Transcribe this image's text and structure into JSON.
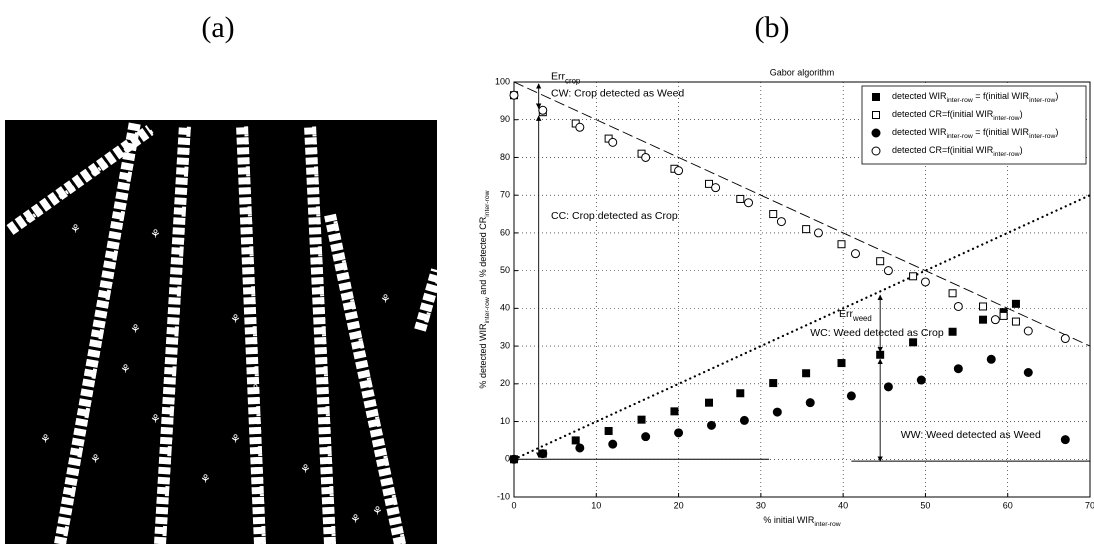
{
  "panels": [
    "(a)",
    "(b)"
  ],
  "chart_data": {
    "type": "scatter",
    "title": "Gabor algorithm",
    "xlabel": [
      "% initial WIR",
      "inter-row"
    ],
    "ylabel": [
      "% detected WIR",
      "inter-row",
      " and % detected CR",
      "inter-row"
    ],
    "xlim": [
      0,
      70
    ],
    "ylim": [
      -10,
      100
    ],
    "xticks": [
      0,
      10,
      20,
      30,
      40,
      50,
      60,
      70
    ],
    "yticks": [
      -10,
      0,
      10,
      20,
      30,
      40,
      50,
      60,
      70,
      80,
      90,
      100
    ],
    "grid": true,
    "legend": "upper right",
    "series": [
      {
        "name": [
          "detected WIR",
          "inter-row",
          " = f(initial WIR",
          "inter-row",
          ")"
        ],
        "marker": "square",
        "filled": true,
        "color": "#000000",
        "x": [
          0,
          3.5,
          7.5,
          11.5,
          15.5,
          19.5,
          23.7,
          27.5,
          31.5,
          35.5,
          39.8,
          44.5,
          48.5,
          53.3,
          57,
          59.5,
          61
        ],
        "values": [
          0,
          1.5,
          5,
          7.5,
          10.5,
          12.7,
          15,
          17.5,
          20.2,
          22.8,
          25.5,
          27.7,
          31,
          33.8,
          37,
          39,
          41.2
        ]
      },
      {
        "name": [
          "detected CR=f(initial WIR",
          "inter-row",
          ")"
        ],
        "marker": "square",
        "filled": false,
        "color": "#000000",
        "x": [
          0,
          3.5,
          7.5,
          11.5,
          15.5,
          19.5,
          23.7,
          27.5,
          31.5,
          35.5,
          39.8,
          44.5,
          48.5,
          53.3,
          57,
          59.5,
          61
        ],
        "values": [
          96.5,
          92,
          89,
          85,
          81,
          77,
          73,
          69,
          65,
          61,
          57,
          52.5,
          48.5,
          44,
          40.5,
          38,
          36.5
        ]
      },
      {
        "name": [
          "detected WIR",
          "inter-row",
          " = f(initial WIR",
          "inter-row",
          ")"
        ],
        "marker": "circle",
        "filled": true,
        "color": "#000000",
        "x": [
          0,
          3.5,
          8,
          12,
          16,
          20,
          24,
          28,
          32,
          36,
          41,
          45.5,
          49.5,
          54,
          58,
          62.5,
          67
        ],
        "values": [
          0,
          1.5,
          3,
          4,
          6,
          7,
          9,
          10.3,
          12.5,
          15,
          16.8,
          19.2,
          21,
          24,
          26.5,
          23,
          5.2
        ]
      },
      {
        "name": [
          "detected CR=f(initial WIR",
          "inter-row",
          ")"
        ],
        "marker": "circle",
        "filled": false,
        "color": "#000000",
        "x": [
          0,
          3.5,
          8,
          12,
          16,
          20,
          24.5,
          28.5,
          32.5,
          37,
          41.5,
          45.5,
          50,
          54,
          58.5,
          62.5,
          67
        ],
        "values": [
          96.5,
          92.5,
          88,
          84,
          80,
          76.5,
          72,
          68,
          63,
          60,
          54.5,
          50,
          47,
          40.5,
          37,
          34,
          32
        ]
      }
    ],
    "lines": [
      {
        "x": [
          0,
          70
        ],
        "y": [
          100,
          30
        ],
        "style": "dashed"
      },
      {
        "x": [
          0,
          70
        ],
        "y": [
          0,
          70
        ],
        "style": "dotted"
      }
    ],
    "annotations": [
      [
        "Err",
        "crop"
      ],
      [
        "CW: Crop detected as Weed"
      ],
      [
        "CC: Crop detected as Crop"
      ],
      [
        "Err",
        "weed"
      ],
      [
        "WC: Weed detected as Crop"
      ],
      [
        "WW: Weed detected as Weed"
      ]
    ]
  }
}
